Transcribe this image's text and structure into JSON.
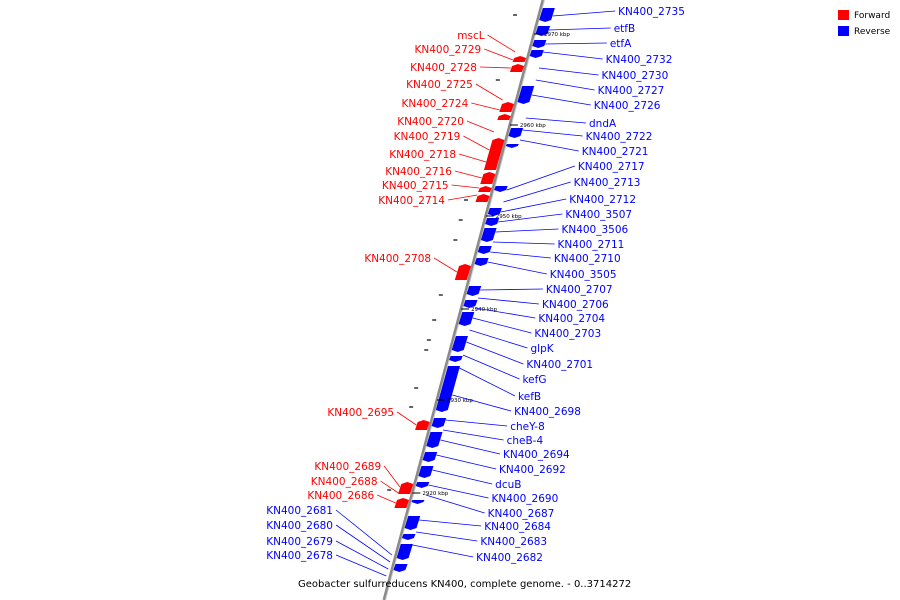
{
  "legend": {
    "forward": {
      "label": "Forward",
      "color": "#ff0000"
    },
    "reverse": {
      "label": "Reverse",
      "color": "#0000ff"
    }
  },
  "caption": "Geobacter sulfurreducens KN400, complete genome. - 0..3714272",
  "ticks": [
    "2970 kbp",
    "2960 kbp",
    "2950 kbp",
    "2940 kbp",
    "2930 kbp",
    "2920 kbp"
  ],
  "colors": {
    "backbone": "#888888",
    "forward": "#ff0000",
    "reverse": "#0000ff"
  },
  "genes": {
    "forward": [
      "mscL",
      "KN400_2729",
      "KN400_2728",
      "KN400_2725",
      "KN400_2724",
      "KN400_2720",
      "KN400_2719",
      "KN400_2718",
      "KN400_2716",
      "KN400_2715",
      "KN400_2714",
      "KN400_2708",
      "KN400_2695",
      "KN400_2689",
      "KN400_2688",
      "KN400_2686"
    ],
    "reverse": [
      "KN400_2735",
      "etfB",
      "etfA",
      "KN400_2732",
      "KN400_2730",
      "KN400_2727",
      "KN400_2726",
      "dndA",
      "KN400_2722",
      "KN400_2721",
      "KN400_2717",
      "KN400_2713",
      "KN400_2712",
      "KN400_3507",
      "KN400_3506",
      "KN400_2711",
      "KN400_2710",
      "KN400_3505",
      "KN400_2707",
      "KN400_2706",
      "KN400_2704",
      "KN400_2703",
      "glpK",
      "KN400_2701",
      "kefG",
      "kefB",
      "KN400_2698",
      "cheY-8",
      "cheB-4",
      "KN400_2694",
      "KN400_2692",
      "dcuB",
      "KN400_2690",
      "KN400_2687",
      "KN400_2684",
      "KN400_2683",
      "KN400_2682"
    ],
    "reverse_left": [
      "KN400_2681",
      "KN400_2680",
      "KN400_2679",
      "KN400_2678"
    ]
  }
}
